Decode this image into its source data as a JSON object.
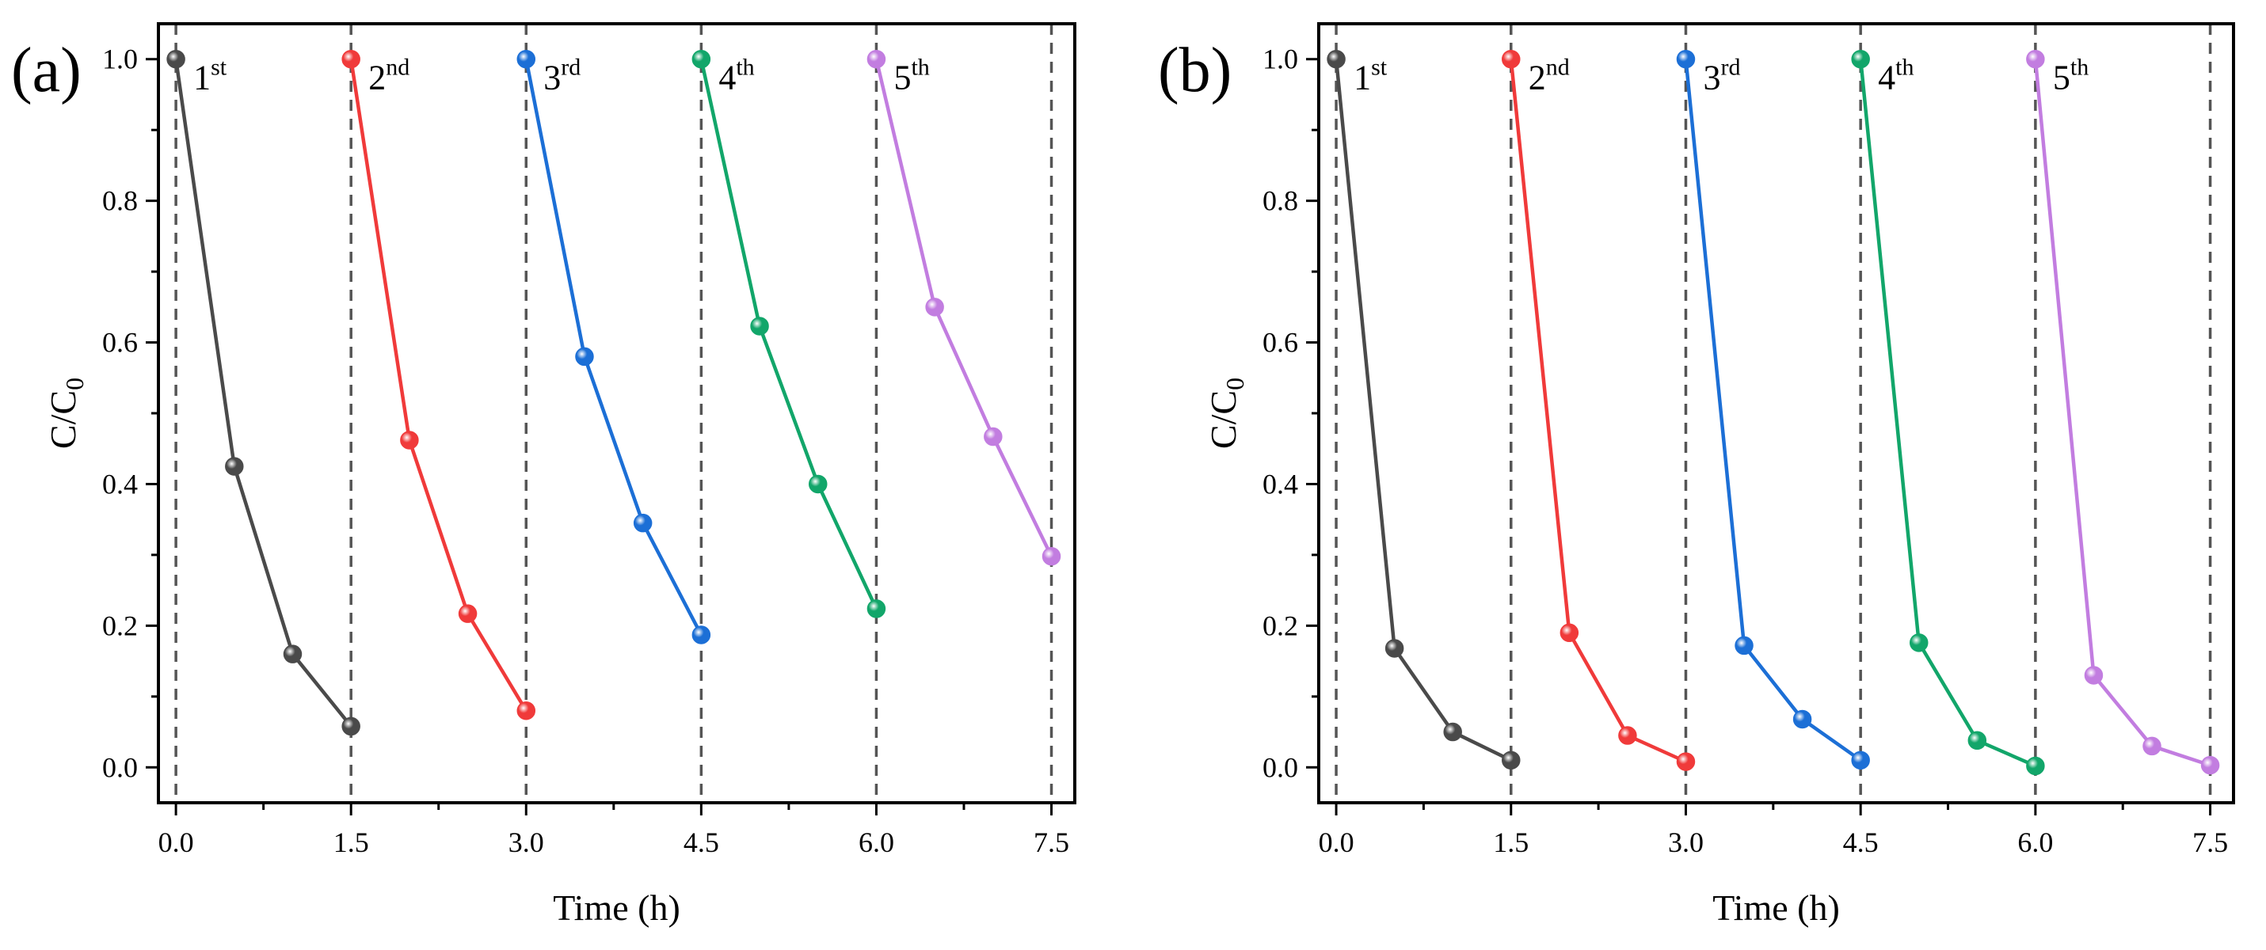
{
  "chart_data": [
    {
      "type": "line",
      "panel_label": "(a)",
      "xlabel": "Time (h)",
      "ylabel_main": "C/C",
      "ylabel_sub": "0",
      "xlim": [
        -0.15,
        7.7
      ],
      "ylim": [
        -0.05,
        1.05
      ],
      "xticks": [
        0.0,
        1.5,
        3.0,
        4.5,
        6.0,
        7.5
      ],
      "xtick_labels": [
        "0.0",
        "1.5",
        "3.0",
        "4.5",
        "6.0",
        "7.5"
      ],
      "yticks": [
        0.0,
        0.2,
        0.4,
        0.6,
        0.8,
        1.0
      ],
      "ytick_labels": [
        "0.0",
        "0.2",
        "0.4",
        "0.6",
        "0.8",
        "1.0"
      ],
      "vlines": [
        0,
        1.5,
        3.0,
        4.5,
        6.0,
        7.5
      ],
      "series": [
        {
          "name": "1st",
          "label_main": "1",
          "label_sup": "st",
          "color": "#4a4a4a",
          "x": [
            0,
            0.5,
            1.0,
            1.5
          ],
          "values": [
            1.0,
            0.425,
            0.16,
            0.058
          ]
        },
        {
          "name": "2nd",
          "label_main": "2",
          "label_sup": "nd",
          "color": "#f03a3a",
          "x": [
            1.5,
            2.0,
            2.5,
            3.0
          ],
          "values": [
            1.0,
            0.462,
            0.217,
            0.08
          ]
        },
        {
          "name": "3rd",
          "label_main": "3",
          "label_sup": "rd",
          "color": "#1c6fd6",
          "x": [
            3.0,
            3.5,
            4.0,
            4.5
          ],
          "values": [
            1.0,
            0.58,
            0.345,
            0.187
          ]
        },
        {
          "name": "4th",
          "label_main": "4",
          "label_sup": "th",
          "color": "#12a66a",
          "x": [
            4.5,
            5.0,
            5.5,
            6.0
          ],
          "values": [
            1.0,
            0.623,
            0.4,
            0.224
          ]
        },
        {
          "name": "5th",
          "label_main": "5",
          "label_sup": "th",
          "color": "#c27de0",
          "x": [
            6.0,
            6.5,
            7.0,
            7.5
          ],
          "values": [
            1.0,
            0.65,
            0.467,
            0.298
          ]
        }
      ]
    },
    {
      "type": "line",
      "panel_label": "(b)",
      "xlabel": "Time (h)",
      "ylabel_main": "C/C",
      "ylabel_sub": "0",
      "xlim": [
        -0.15,
        7.7
      ],
      "ylim": [
        -0.05,
        1.05
      ],
      "xticks": [
        0.0,
        1.5,
        3.0,
        4.5,
        6.0,
        7.5
      ],
      "xtick_labels": [
        "0.0",
        "1.5",
        "3.0",
        "4.5",
        "6.0",
        "7.5"
      ],
      "yticks": [
        0.0,
        0.2,
        0.4,
        0.6,
        0.8,
        1.0
      ],
      "ytick_labels": [
        "0.0",
        "0.2",
        "0.4",
        "0.6",
        "0.8",
        "1.0"
      ],
      "vlines": [
        0,
        1.5,
        3.0,
        4.5,
        6.0,
        7.5
      ],
      "series": [
        {
          "name": "1st",
          "label_main": "1",
          "label_sup": "st",
          "color": "#4a4a4a",
          "x": [
            0,
            0.5,
            1.0,
            1.5
          ],
          "values": [
            1.0,
            0.168,
            0.05,
            0.01
          ]
        },
        {
          "name": "2nd",
          "label_main": "2",
          "label_sup": "nd",
          "color": "#f03a3a",
          "x": [
            1.5,
            2.0,
            2.5,
            3.0
          ],
          "values": [
            1.0,
            0.19,
            0.045,
            0.008
          ]
        },
        {
          "name": "3rd",
          "label_main": "3",
          "label_sup": "rd",
          "color": "#1c6fd6",
          "x": [
            3.0,
            3.5,
            4.0,
            4.5
          ],
          "values": [
            1.0,
            0.172,
            0.068,
            0.01
          ]
        },
        {
          "name": "4th",
          "label_main": "4",
          "label_sup": "th",
          "color": "#12a66a",
          "x": [
            4.5,
            5.0,
            5.5,
            6.0
          ],
          "values": [
            1.0,
            0.176,
            0.038,
            0.002
          ]
        },
        {
          "name": "5th",
          "label_main": "5",
          "label_sup": "th",
          "color": "#c27de0",
          "x": [
            6.0,
            6.5,
            7.0,
            7.5
          ],
          "values": [
            1.0,
            0.13,
            0.03,
            0.003
          ]
        }
      ]
    }
  ]
}
